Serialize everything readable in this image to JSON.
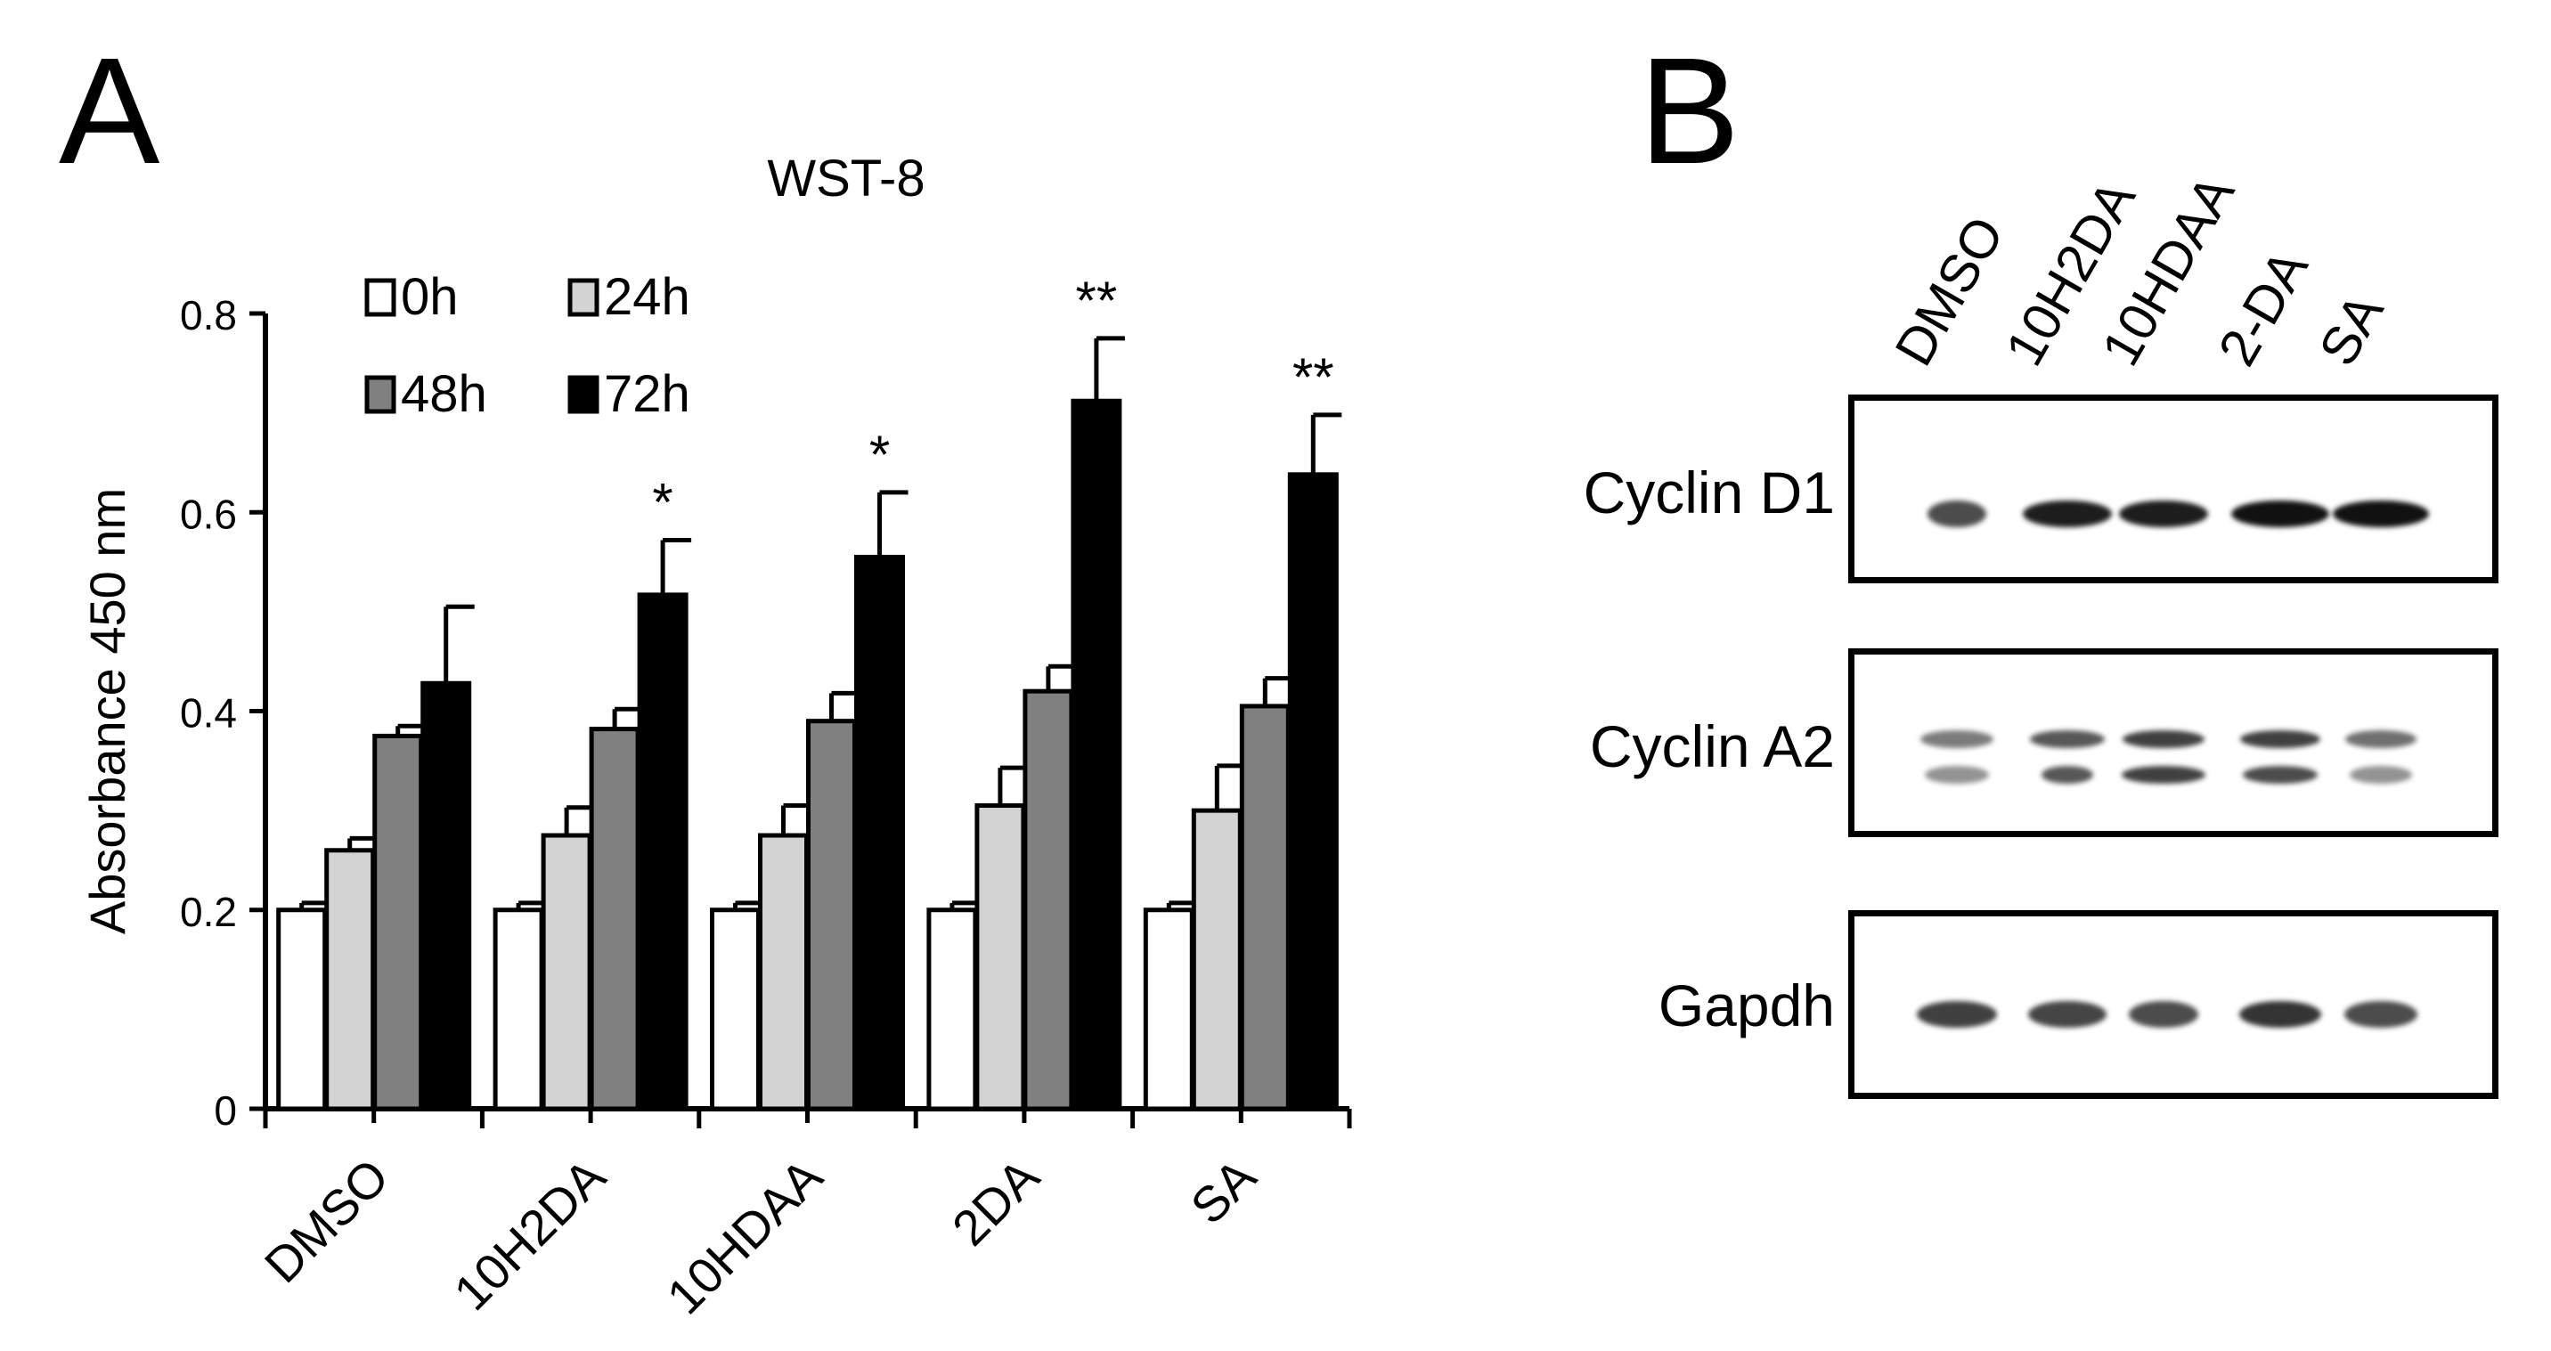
{
  "panelA": {
    "letter": "A"
  },
  "panelB": {
    "letter": "B",
    "lanes": [
      "DMSO",
      "10H2DA",
      "10HDAA",
      "2-DA",
      "SA"
    ],
    "blots": [
      {
        "protein": "Cyclin D1"
      },
      {
        "protein": "Cyclin A2"
      },
      {
        "protein": "Gapdh"
      }
    ]
  },
  "chart_data": {
    "type": "bar",
    "title": "WST-8",
    "xlabel": "",
    "ylabel": "Absorbance 450 nm",
    "ylim": [
      0,
      0.8
    ],
    "yticks": [
      "0",
      "0.2",
      "0.4",
      "0.6",
      "0.8"
    ],
    "categories": [
      "DMSO",
      "10H2DA",
      "10HDAA",
      "2DA",
      "SA"
    ],
    "legend_position": "top-left",
    "grid": false,
    "series": [
      {
        "name": "0h",
        "color": "#ffffff",
        "values": [
          0.2,
          0.2,
          0.2,
          0.2,
          0.2
        ],
        "errors": [
          0.007,
          0.007,
          0.007,
          0.007,
          0.007
        ]
      },
      {
        "name": "24h",
        "color": "#d3d3d3",
        "values": [
          0.26,
          0.275,
          0.275,
          0.305,
          0.3
        ],
        "errors": [
          0.012,
          0.028,
          0.03,
          0.038,
          0.045
        ]
      },
      {
        "name": "48h",
        "color": "#808080",
        "values": [
          0.375,
          0.382,
          0.39,
          0.42,
          0.405
        ],
        "errors": [
          0.01,
          0.02,
          0.028,
          0.025,
          0.028
        ]
      },
      {
        "name": "72h",
        "color": "#000000",
        "values": [
          0.428,
          0.517,
          0.555,
          0.712,
          0.638
        ],
        "errors": [
          0.077,
          0.055,
          0.065,
          0.063,
          0.06
        ]
      }
    ],
    "significance": [
      "",
      "*",
      "*",
      "**",
      "**"
    ]
  }
}
